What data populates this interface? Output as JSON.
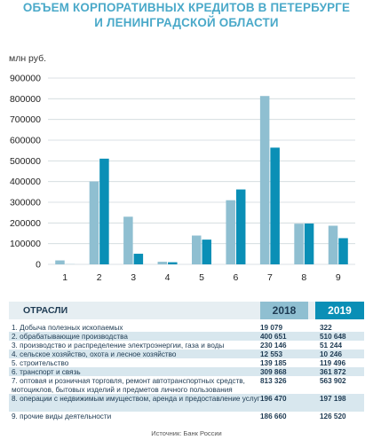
{
  "title_line1": "ОБЪЕМ КОРПОРАТИВНЫХ КРЕДИТОВ В ПЕТЕРБУРГЕ",
  "title_line2": "И ЛЕНИНГРАДСКОЙ ОБЛАСТИ",
  "unit": "млн руб.",
  "colors": {
    "s2018": "#8fbfd1",
    "s2019": "#0a8fb6",
    "title": "#4aa9c9",
    "shade": "#d8e7ee"
  },
  "chart_data": {
    "type": "bar",
    "categories": [
      "1",
      "2",
      "3",
      "4",
      "5",
      "6",
      "7",
      "8",
      "9"
    ],
    "series": [
      {
        "name": "2018",
        "values": [
          19079,
          400651,
          230146,
          12553,
          139185,
          309868,
          813326,
          196470,
          186660
        ]
      },
      {
        "name": "2019",
        "values": [
          322,
          510648,
          51244,
          10246,
          119496,
          361872,
          563902,
          197198,
          126520
        ]
      }
    ],
    "ylim": [
      0,
      900000
    ],
    "yticks": [
      0,
      100000,
      200000,
      300000,
      400000,
      500000,
      600000,
      700000,
      800000,
      900000
    ],
    "grid": true
  },
  "table": {
    "header_label": "ОТРАСЛИ",
    "header_2018": "2018",
    "header_2019": "2019",
    "rows": [
      {
        "name": "1. Добыча полезных ископаемых",
        "v2018": "19 079",
        "v2019": "322"
      },
      {
        "name": "2. обрабатывающие производства",
        "v2018": "400 651",
        "v2019": "510 648"
      },
      {
        "name": "3. производство и распределение электроэнергии, газа и воды",
        "v2018": "230 146",
        "v2019": "51 244"
      },
      {
        "name": "4. сельское хозяйство, охота и лесное хозяйство",
        "v2018": "12 553",
        "v2019": "10 246"
      },
      {
        "name": "5. строительство",
        "v2018": "139 185",
        "v2019": "119 496"
      },
      {
        "name": "6. транспорт и связь",
        "v2018": "309 868",
        "v2019": "361 872"
      },
      {
        "name": "7. оптовая и розничная торговля, ремонт автотранспортных средств, мотоциклов, бытовых изделий и предметов личного пользования",
        "v2018": "813 326",
        "v2019": "563 902"
      },
      {
        "name": "8. операции с недвижимым имуществом, аренда и предоставление услуг",
        "v2018": "196 470",
        "v2019": "197 198"
      },
      {
        "name": "9. прочие виды деятельности",
        "v2018": "186 660",
        "v2019": "126 520"
      }
    ]
  },
  "source": "Источник: Банк России"
}
